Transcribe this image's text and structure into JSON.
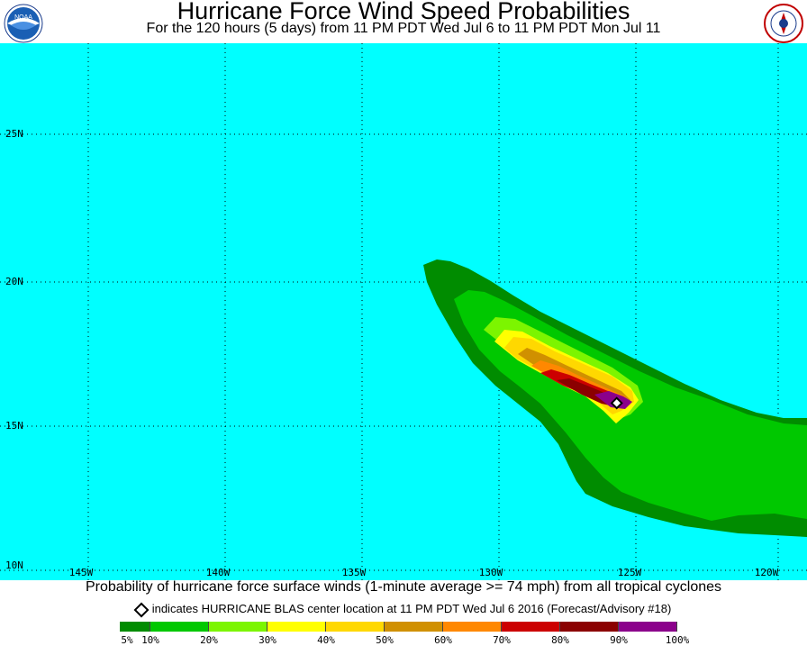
{
  "header": {
    "title": "Hurricane Force Wind Speed Probabilities",
    "subtitle": "For the 120 hours (5 days) from 11 PM PDT Wed Jul 6 to 11 PM PDT Mon Jul 11",
    "left_logo_text": "NOAA",
    "right_logo_text": "NATIONAL WEATHER SERVICE"
  },
  "map": {
    "ocean_color": "#00ffff",
    "lat_labels": [
      "25N",
      "20N",
      "15N",
      "10N"
    ],
    "lon_labels": [
      "145W",
      "140W",
      "135W",
      "130W",
      "125W",
      "120W"
    ],
    "center_marker": {
      "lon": -125.7,
      "lat": 15.8
    }
  },
  "caption": "Probability of hurricane force surface winds (1-minute average >= 74 mph) from all tropical cyclones",
  "note": "indicates HURRICANE BLAS center location at 11 PM PDT Wed Jul 6 2016 (Forecast/Advisory #18)",
  "legend": {
    "colors": [
      "#008c00",
      "#00c800",
      "#7cf500",
      "#ffff00",
      "#ffd800",
      "#d09000",
      "#ff8800",
      "#cc0000",
      "#8b0000",
      "#8b008b"
    ],
    "labels": [
      "5%",
      "10%",
      "20%",
      "30%",
      "40%",
      "50%",
      "60%",
      "70%",
      "80%",
      "90%",
      "100%"
    ]
  }
}
